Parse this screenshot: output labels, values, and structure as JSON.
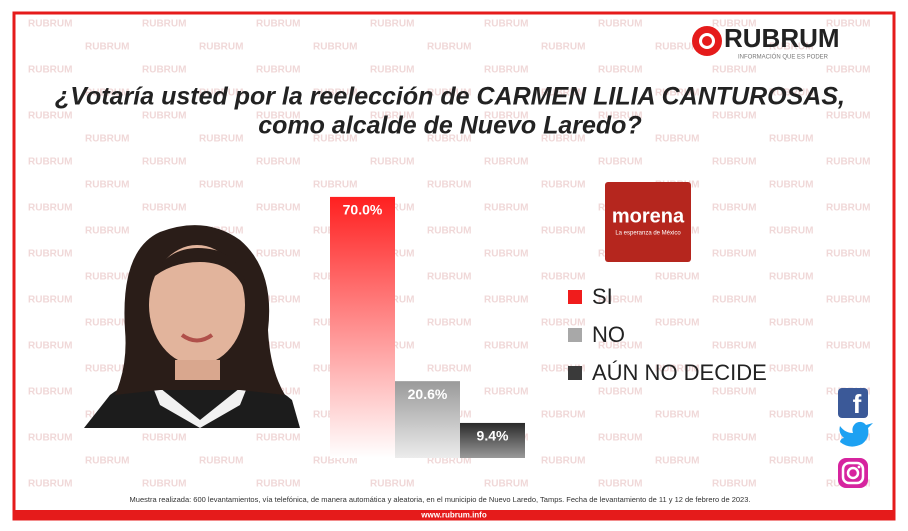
{
  "chart_data": {
    "type": "bar",
    "title": [
      "¿Votaría usted por la reelección de CARMEN LILIA CANTUROSAS,",
      "como alcalde de Nuevo Laredo?"
    ],
    "categories": [
      "SI",
      "NO",
      "AÚN NO DECIDE"
    ],
    "values": [
      70.0,
      20.6,
      9.4
    ],
    "value_labels": [
      "70.0%",
      "20.6%",
      "9.4%"
    ],
    "colors": [
      "#f01c1c",
      "#a8a8a8",
      "#3a3a3a"
    ]
  },
  "logo": {
    "name": "RUBRUM",
    "tagline": "INFORMACIÓN QUE ES PODER"
  },
  "party_logo": {
    "name": "morena",
    "tagline": "La esperanza de México"
  },
  "watermark": "RUBRUM",
  "footnote": "Muestra realizada: 600 levantamientos, vía telefónica, de manera automática y aleatoria, en el municipio de Nuevo Laredo, Tamps. Fecha de levantamiento de 11 y 12 de febrero de 2023.",
  "website": "www.rubrum.info"
}
